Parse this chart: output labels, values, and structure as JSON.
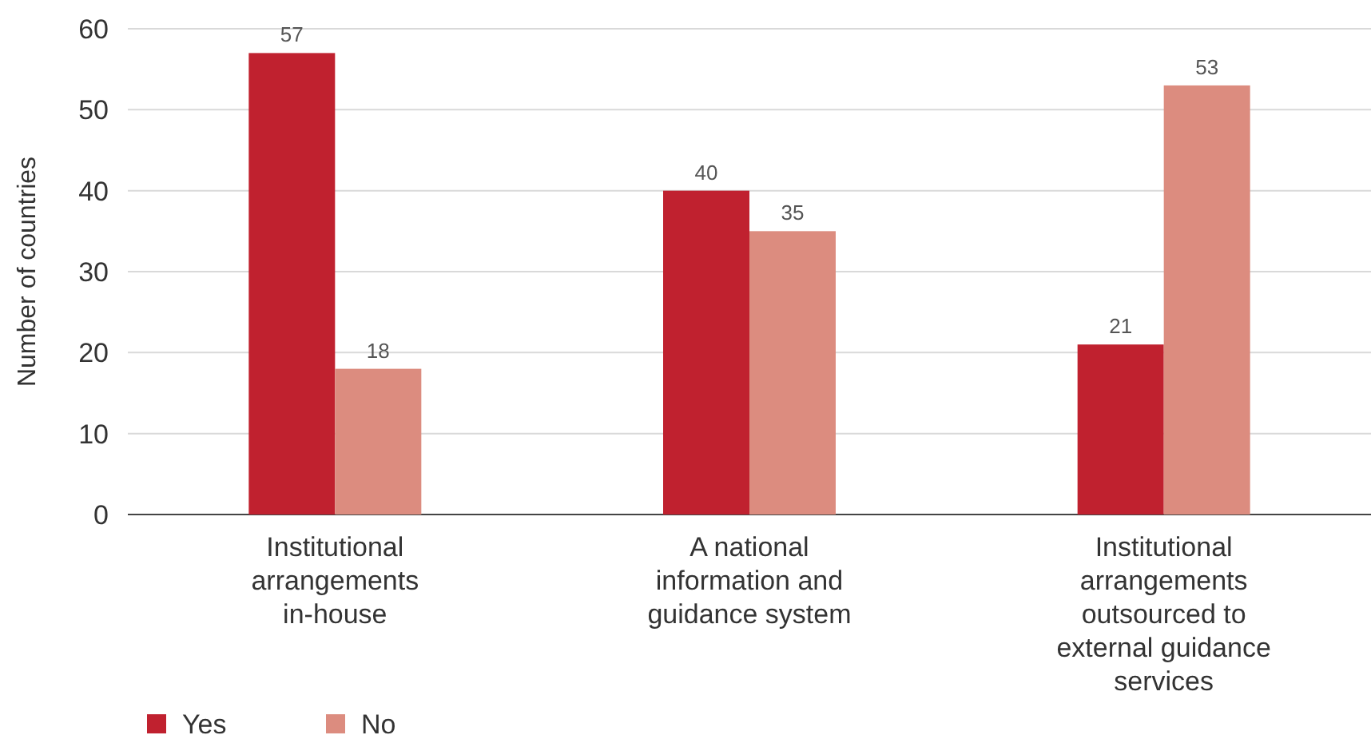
{
  "chart_data": {
    "type": "bar",
    "ylabel": "Number of countries",
    "categories": [
      "Institutional arrangements in-house",
      "A national information and guidance system",
      "Institutional arrangements outsourced to external guidance services"
    ],
    "series": [
      {
        "name": "Yes",
        "color": "#c0212f",
        "values": [
          57,
          40,
          21
        ]
      },
      {
        "name": "No",
        "color": "#dc8c7f",
        "values": [
          18,
          35,
          53
        ]
      }
    ],
    "ylim": [
      0,
      60
    ],
    "yticks": [
      0,
      10,
      20,
      30,
      40,
      50,
      60
    ],
    "grid": "y",
    "legend": "bottom left",
    "data_labels": true
  }
}
